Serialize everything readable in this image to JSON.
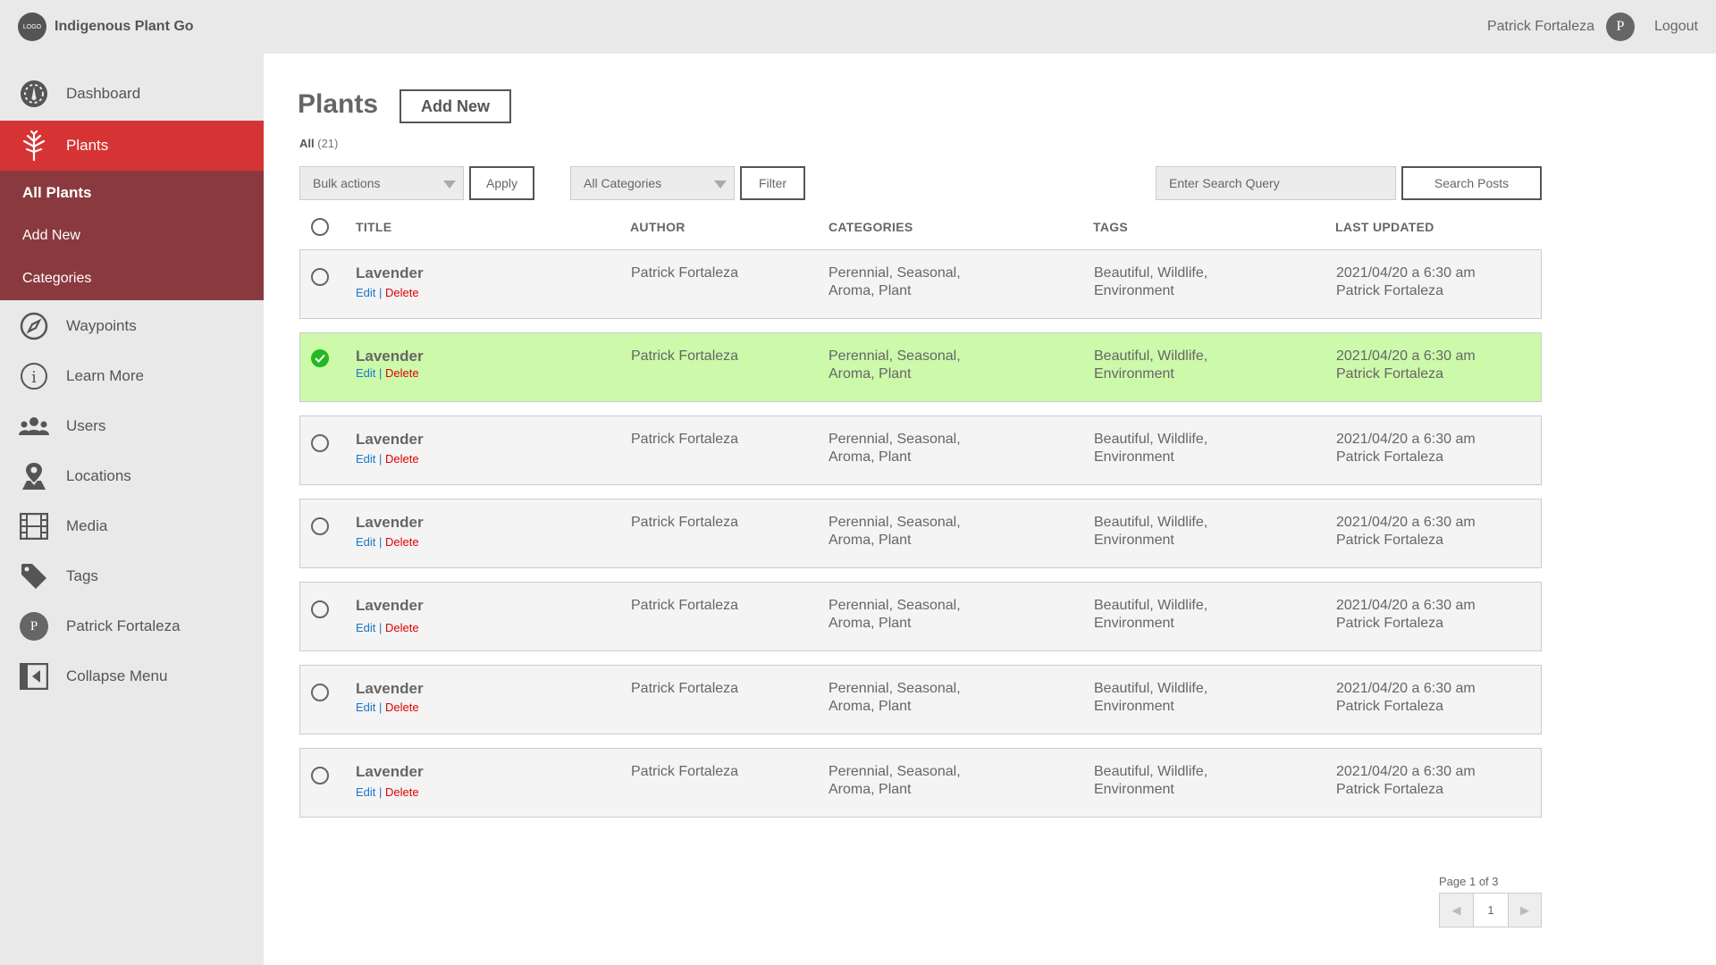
{
  "app": {
    "logo_text": "LOGO",
    "name": "Indigenous Plant Go"
  },
  "topbar": {
    "user_name": "Patrick Fortaleza",
    "avatar_initial": "P",
    "logout_label": "Logout"
  },
  "sidebar": {
    "items": [
      {
        "label": "Dashboard",
        "icon": "dashboard-gauge-icon"
      },
      {
        "label": "Plants",
        "icon": "tree-icon",
        "active": true
      },
      {
        "label": "Waypoints",
        "icon": "compass-icon"
      },
      {
        "label": "Learn More",
        "icon": "info-icon"
      },
      {
        "label": "Users",
        "icon": "users-icon"
      },
      {
        "label": "Locations",
        "icon": "map-pin-icon"
      },
      {
        "label": "Media",
        "icon": "film-icon"
      },
      {
        "label": "Tags",
        "icon": "tag-icon"
      },
      {
        "label": "Patrick Fortaleza",
        "icon": "avatar",
        "avatar_initial": "P"
      },
      {
        "label": "Collapse Menu",
        "icon": "collapse-icon"
      }
    ],
    "submenu": [
      {
        "label": "All Plants",
        "current": true
      },
      {
        "label": "Add New"
      },
      {
        "label": "Categories"
      }
    ]
  },
  "main": {
    "title": "Plants",
    "add_new_label": "Add New",
    "all_label": "All",
    "all_count": "(21)",
    "bulk_select": "Bulk actions",
    "apply_label": "Apply",
    "category_select": "All Categories",
    "filter_label": "Filter",
    "search_placeholder": "Enter Search Query",
    "search_button": "Search Posts"
  },
  "table": {
    "headers": [
      "TITLE",
      "AUTHOR",
      "CATEGORIES",
      "TAGS",
      "LAST UPDATED"
    ],
    "rows": [
      {
        "title": "Lavender",
        "edit": "Edit",
        "sep": "|",
        "delete": "Delete",
        "author": "Patrick Fortaleza",
        "categories_1": "Perennial, Seasonal,",
        "categories_2": "Aroma, Plant",
        "tags_1": "Beautiful, Wildlife,",
        "tags_2": "Environment",
        "updated_1": "2021/04/20 a 6:30 am",
        "updated_2": "Patrick Fortaleza",
        "selected": false
      },
      {
        "title": "Lavender",
        "edit": "Edit",
        "sep": "|",
        "delete": "Delete",
        "author": "Patrick Fortaleza",
        "categories_1": "Perennial, Seasonal,",
        "categories_2": "Aroma, Plant",
        "tags_1": "Beautiful, Wildlife,",
        "tags_2": "Environment",
        "updated_1": "2021/04/20 a 6:30 am",
        "updated_2": "Patrick Fortaleza",
        "selected": true
      },
      {
        "title": "Lavender",
        "edit": "Edit",
        "sep": "|",
        "delete": "Delete",
        "author": "Patrick Fortaleza",
        "categories_1": "Perennial, Seasonal,",
        "categories_2": "Aroma, Plant",
        "tags_1": "Beautiful, Wildlife,",
        "tags_2": "Environment",
        "updated_1": "2021/04/20 a 6:30 am",
        "updated_2": "Patrick Fortaleza",
        "selected": false
      },
      {
        "title": "Lavender",
        "edit": "Edit",
        "sep": "|",
        "delete": "Delete",
        "author": "Patrick Fortaleza",
        "categories_1": "Perennial, Seasonal,",
        "categories_2": "Aroma, Plant",
        "tags_1": "Beautiful, Wildlife,",
        "tags_2": "Environment",
        "updated_1": "2021/04/20 a 6:30 am",
        "updated_2": "Patrick Fortaleza",
        "selected": false
      },
      {
        "title": "Lavender",
        "edit": "Edit",
        "sep": "|",
        "delete": "Delete",
        "author": "Patrick Fortaleza",
        "categories_1": "Perennial, Seasonal,",
        "categories_2": "Aroma, Plant",
        "tags_1": "Beautiful, Wildlife,",
        "tags_2": "Environment",
        "updated_1": "2021/04/20 a 6:30 am",
        "updated_2": "Patrick Fortaleza",
        "selected": false
      },
      {
        "title": "Lavender",
        "edit": "Edit",
        "sep": "|",
        "delete": "Delete",
        "author": "Patrick Fortaleza",
        "categories_1": "Perennial, Seasonal,",
        "categories_2": "Aroma, Plant",
        "tags_1": "Beautiful, Wildlife,",
        "tags_2": "Environment",
        "updated_1": "2021/04/20 a 6:30 am",
        "updated_2": "Patrick Fortaleza",
        "selected": false
      },
      {
        "title": "Lavender",
        "edit": "Edit",
        "sep": "|",
        "delete": "Delete",
        "author": "Patrick Fortaleza",
        "categories_1": "Perennial, Seasonal,",
        "categories_2": "Aroma, Plant",
        "tags_1": "Beautiful, Wildlife,",
        "tags_2": "Environment",
        "updated_1": "2021/04/20 a 6:30 am",
        "updated_2": "Patrick Fortaleza",
        "selected": false
      }
    ]
  },
  "pagination": {
    "info": "Page 1 of 3",
    "current": "1",
    "prev_glyph": "◀",
    "next_glyph": "▶"
  },
  "colors": {
    "active_nav": "#d63434",
    "submenu_bg": "#8a3a3f",
    "selected_row": "#ccf9aa",
    "check_green": "#22b822",
    "edit_link": "#1b76c9",
    "delete_link": "#e00000"
  }
}
